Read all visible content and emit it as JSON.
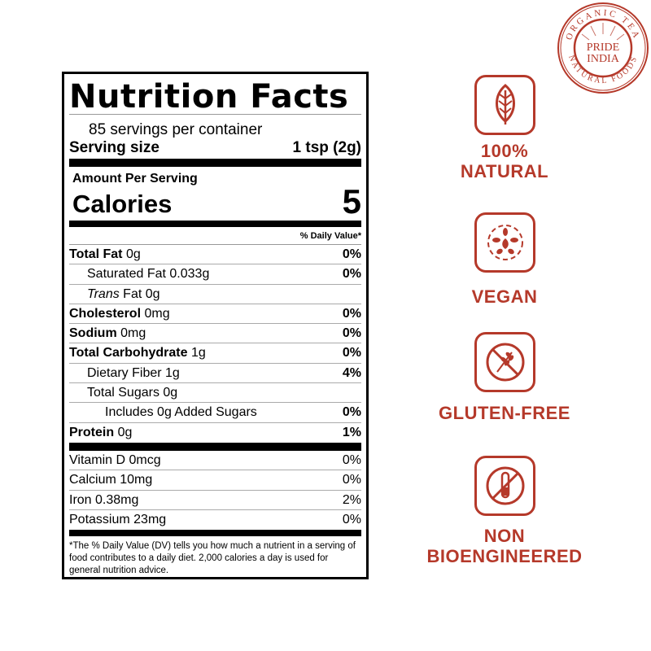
{
  "brand": {
    "logo_text": "PRIDE INDIA",
    "logo_ring_top": "ORGANIC TEA",
    "logo_ring_bottom": "NATURAL FOODS",
    "color": "#b5392a"
  },
  "label": {
    "title": "Nutrition Facts",
    "servings": "85 servings per container",
    "serving_size_label": "Serving size",
    "serving_size_value": "1 tsp (2g)",
    "amount_per_serving": "Amount Per Serving",
    "calories_label": "Calories",
    "calories_value": "5",
    "dv_header": "% Daily Value*",
    "nutrients": [
      {
        "name": "Total Fat",
        "amount": "0g",
        "dv": "0%"
      },
      {
        "name": "Saturated Fat",
        "amount": "0.033g",
        "dv": "0%"
      },
      {
        "name": "Trans",
        "amount": "Fat 0g",
        "dv": ""
      },
      {
        "name": "Cholesterol",
        "amount": "0mg",
        "dv": "0%"
      },
      {
        "name": "Sodium",
        "amount": "0mg",
        "dv": "0%"
      },
      {
        "name": "Total Carbohydrate",
        "amount": "1g",
        "dv": "0%"
      },
      {
        "name": "Dietary Fiber",
        "amount": "1g",
        "dv": "4%"
      },
      {
        "name": "Total Sugars",
        "amount": "0g",
        "dv": ""
      },
      {
        "name": "Includes 0g Added Sugars",
        "amount": "",
        "dv": "0%"
      },
      {
        "name": "Protein",
        "amount": "0g",
        "dv": "1%"
      }
    ],
    "vitamins": [
      {
        "name": "Vitamin D 0mcg",
        "dv": "0%"
      },
      {
        "name": "Calcium 10mg",
        "dv": "0%"
      },
      {
        "name": "Iron 0.38mg",
        "dv": "2%"
      },
      {
        "name": "Potassium 23mg",
        "dv": "0%"
      }
    ],
    "footnote": "The % Daily Value (DV) tells you how much a nutrient in a serving of food contributes to a daily diet. 2,000 calories a day is used for general nutrition advice.",
    "footnote_mark": "*"
  },
  "badges": [
    {
      "icon": "leaf-icon",
      "line1": "100%",
      "line2": "NATURAL"
    },
    {
      "icon": "vegan-leaves-icon",
      "line1": "VEGAN"
    },
    {
      "icon": "no-wheat-icon",
      "line1": "GLUTEN-FREE"
    },
    {
      "icon": "no-test-tube-icon",
      "line1": "NON",
      "line2": "BIOENGINEERED"
    }
  ]
}
